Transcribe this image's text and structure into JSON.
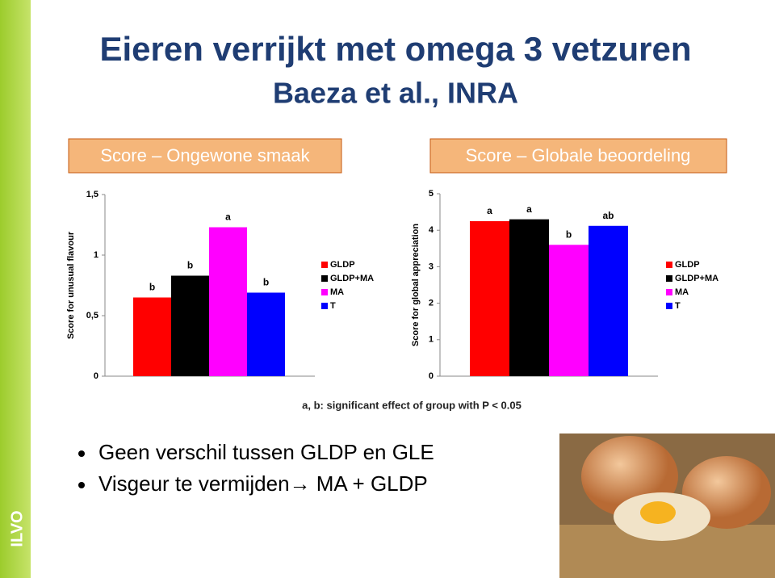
{
  "slide": {
    "title": "Eieren verrijkt met omega 3 vetzuren",
    "subtitle": "Baeza et al., INRA",
    "side_label": "ILVO",
    "footnote": "a, b: significant effect of group with P < 0.05",
    "bullets": [
      "Geen verschil tussen GLDP en GLE",
      "Visgeur te vermijden→ MA + GLDP"
    ]
  },
  "chart_data": [
    {
      "type": "bar",
      "title": "Score – Ongewone smaak",
      "y_label": "Score for unusual flavour",
      "categories": [
        null
      ],
      "series": [
        {
          "name": "GLDP",
          "color": "#ff0000",
          "values": [
            0.65
          ],
          "letter": "b"
        },
        {
          "name": "GLDP+MA",
          "color": "#000000",
          "values": [
            0.83
          ],
          "letter": "b"
        },
        {
          "name": "MA",
          "color": "#ff00ff",
          "values": [
            1.23
          ],
          "letter": "a"
        },
        {
          "name": "T",
          "color": "#0000ff",
          "values": [
            0.69
          ],
          "letter": "b"
        }
      ],
      "ylim": [
        0,
        1.5
      ],
      "yticks": [
        0,
        {
          "value": 0.5,
          "label": "0,5"
        },
        1,
        {
          "value": 1.5,
          "label": "1,5"
        }
      ],
      "legend": "right"
    },
    {
      "type": "bar",
      "title": "Score – Globale beoordeling",
      "y_label": "Score for global appreciation",
      "categories": [
        null
      ],
      "series": [
        {
          "name": "GLDP",
          "color": "#ff0000",
          "values": [
            4.25
          ],
          "letter": "a"
        },
        {
          "name": "GLDP+MA",
          "color": "#000000",
          "values": [
            4.3
          ],
          "letter": "a"
        },
        {
          "name": "MA",
          "color": "#ff00ff",
          "values": [
            3.6
          ],
          "letter": "b"
        },
        {
          "name": "T",
          "color": "#0000ff",
          "values": [
            4.12
          ],
          "letter": "ab"
        }
      ],
      "ylim": [
        0,
        5
      ],
      "yticks": [
        0,
        1,
        2,
        3,
        4,
        5
      ],
      "legend": "right"
    }
  ]
}
